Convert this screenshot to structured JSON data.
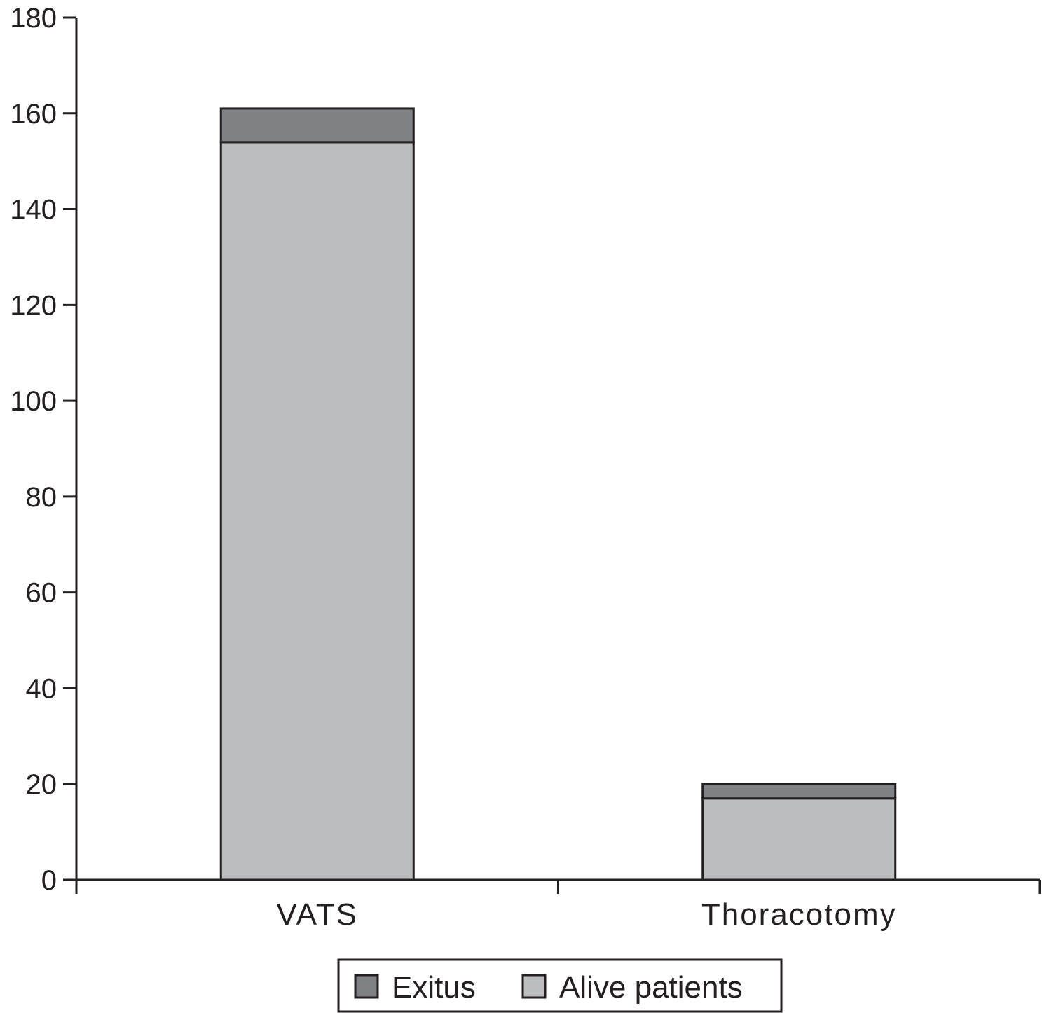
{
  "chart_data": {
    "type": "bar",
    "stacked": true,
    "categories": [
      "VATS",
      "Thoracotomy"
    ],
    "series": [
      {
        "name": "Alive patients",
        "values": [
          154,
          17
        ],
        "color": "#bcbdbf"
      },
      {
        "name": "Exitus",
        "values": [
          7,
          3
        ],
        "color": "#808184"
      }
    ],
    "legend_order": [
      "Exitus",
      "Alive patients"
    ],
    "legend_position": "bottom-center",
    "title": "",
    "xlabel": "",
    "ylabel": "",
    "ylim": [
      0,
      180
    ],
    "yticks": [
      0,
      20,
      40,
      60,
      80,
      100,
      120,
      140,
      160,
      180
    ],
    "grid": false,
    "colors": {
      "axis": "#231f20",
      "text": "#231f20",
      "bar_outline": "#231f20"
    }
  }
}
